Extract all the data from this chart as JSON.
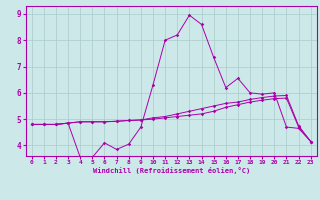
{
  "xlabel": "Windchill (Refroidissement éolien,°C)",
  "xlim": [
    -0.5,
    23.5
  ],
  "ylim": [
    3.6,
    9.3
  ],
  "yticks": [
    4,
    5,
    6,
    7,
    8,
    9
  ],
  "xticks": [
    0,
    1,
    2,
    3,
    4,
    5,
    6,
    7,
    8,
    9,
    10,
    11,
    12,
    13,
    14,
    15,
    16,
    17,
    18,
    19,
    20,
    21,
    22,
    23
  ],
  "bg_color": "#cce8e8",
  "grid_color": "#aacccc",
  "line_color": "#aa00aa",
  "series1_x": [
    0,
    1,
    2,
    3,
    4,
    5,
    6,
    7,
    8,
    9,
    10,
    11,
    12,
    13,
    14,
    15,
    16,
    17,
    18,
    19,
    20,
    21,
    22,
    23
  ],
  "series1_y": [
    4.8,
    4.8,
    4.8,
    4.85,
    4.9,
    4.9,
    4.9,
    4.92,
    4.95,
    4.97,
    5.0,
    5.05,
    5.1,
    5.15,
    5.2,
    5.3,
    5.45,
    5.55,
    5.65,
    5.72,
    5.78,
    5.8,
    4.7,
    4.15
  ],
  "series2_x": [
    0,
    1,
    2,
    3,
    4,
    5,
    6,
    7,
    8,
    9,
    10,
    11,
    12,
    13,
    14,
    15,
    16,
    17,
    18,
    19,
    20,
    21,
    22,
    23
  ],
  "series2_y": [
    4.8,
    4.8,
    4.8,
    4.85,
    4.9,
    4.9,
    4.9,
    4.92,
    4.95,
    4.97,
    5.05,
    5.1,
    5.2,
    5.3,
    5.4,
    5.5,
    5.6,
    5.65,
    5.75,
    5.82,
    5.88,
    5.9,
    4.75,
    4.15
  ],
  "series3_x": [
    0,
    1,
    2,
    3,
    4,
    5,
    6,
    7,
    8,
    9,
    10,
    11,
    12,
    13,
    14,
    15,
    16,
    17,
    18,
    19,
    20,
    21,
    22,
    23
  ],
  "series3_y": [
    4.8,
    4.8,
    4.8,
    4.85,
    3.55,
    3.55,
    4.1,
    3.85,
    4.05,
    4.7,
    6.3,
    8.0,
    8.2,
    8.95,
    8.6,
    7.35,
    6.2,
    6.55,
    6.0,
    5.95,
    6.0,
    4.7,
    4.65,
    4.15
  ]
}
